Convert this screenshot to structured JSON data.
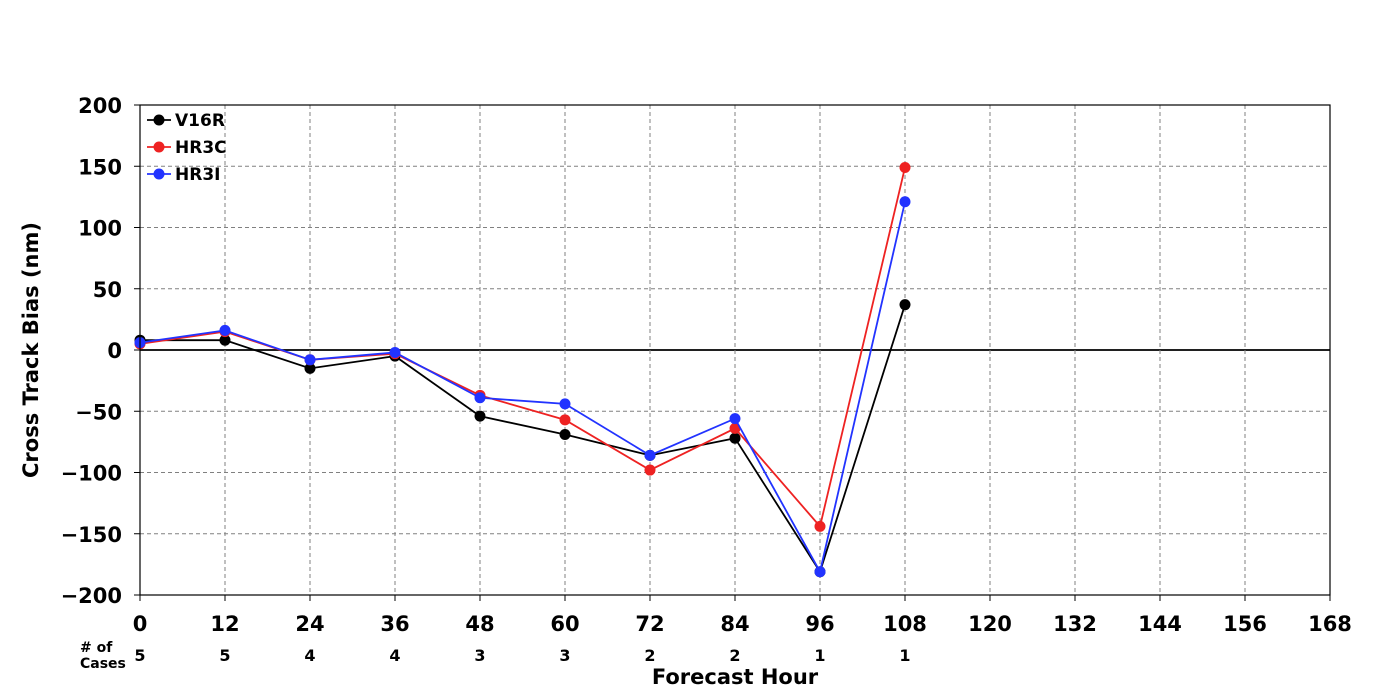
{
  "chart_data": {
    "type": "line",
    "xlabel": "Forecast Hour",
    "ylabel": "Cross Track Bias (nm)",
    "xlim": [
      0,
      168
    ],
    "ylim": [
      -200,
      200
    ],
    "x_ticks": [
      0,
      12,
      24,
      36,
      48,
      60,
      72,
      84,
      96,
      108,
      120,
      132,
      144,
      156,
      168
    ],
    "y_ticks": [
      200,
      150,
      100,
      50,
      0,
      -50,
      -100,
      -150,
      -200
    ],
    "y_tick_labels": [
      "200",
      "150",
      "100",
      "50",
      "0",
      "−50",
      "−100",
      "−150",
      "−200"
    ],
    "grid": true,
    "zero_line": true,
    "legend_position": "top-left",
    "x": [
      0,
      12,
      24,
      36,
      48,
      60,
      72,
      84,
      96,
      108
    ],
    "series": [
      {
        "name": "V16R",
        "color": "#000000",
        "values": [
          8,
          8,
          -15,
          -5,
          -54,
          -69,
          -86,
          -72,
          -181,
          37
        ]
      },
      {
        "name": "HR3C",
        "color": "#ee2222",
        "values": [
          5,
          15,
          -8,
          -3,
          -37,
          -57,
          -98,
          -64,
          -144,
          149
        ]
      },
      {
        "name": "HR3I",
        "color": "#2233ff",
        "values": [
          6,
          16,
          -8,
          -2,
          -39,
          -44,
          -86,
          -56,
          -181,
          121
        ]
      }
    ],
    "cases": {
      "label_line1": "# of",
      "label_line2": "Cases",
      "values": [
        "5",
        "5",
        "4",
        "4",
        "3",
        "3",
        "2",
        "2",
        "1",
        "1"
      ]
    }
  }
}
